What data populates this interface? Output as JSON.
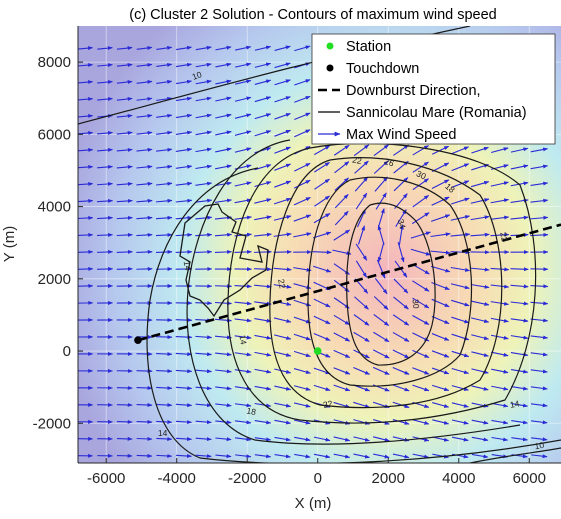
{
  "chart_data": {
    "type": "contour",
    "title": "(c) Cluster 2 Solution - Contours of maximum wind speed",
    "xlabel": "X (m)",
    "ylabel": "Y (m)",
    "xlim": [
      -6800,
      6900
    ],
    "ylim": [
      -3100,
      9000
    ],
    "x_ticks": [
      -6000,
      -4000,
      -2000,
      0,
      2000,
      4000,
      6000
    ],
    "y_ticks": [
      -2000,
      0,
      2000,
      4000,
      6000,
      8000
    ],
    "x_tick_labels": [
      "-6000",
      "-4000",
      "-2000",
      "0",
      "2000",
      "4000",
      "6000"
    ],
    "y_tick_labels": [
      "-2000",
      "0",
      "2000",
      "4000",
      "6000",
      "8000"
    ],
    "grid": true,
    "legend": {
      "placement": "top-right",
      "entries": [
        {
          "label": "Station",
          "marker": "dot",
          "color": "#22dd22"
        },
        {
          "label": "Touchdown",
          "marker": "dot",
          "color": "#000000"
        },
        {
          "label": "Downburst Direction,",
          "marker": "dashed-line",
          "color": "#000000"
        },
        {
          "label": "Sannicolau Mare (Romania)",
          "marker": "line",
          "color": "#000000"
        },
        {
          "label": "Max Wind Speed",
          "marker": "arrow",
          "color": "#2a2ad6"
        }
      ]
    },
    "station": {
      "x": 0,
      "y": 0
    },
    "touchdown": {
      "x": -5100,
      "y": 300
    },
    "downburst_direction": {
      "x": [
        -5100,
        6900
      ],
      "y": [
        300,
        3500
      ]
    },
    "wind_speed_peak": {
      "x": 2500,
      "y": 3000
    },
    "contours": [
      {
        "level": 10,
        "label": "10"
      },
      {
        "level": 14,
        "label": "14"
      },
      {
        "level": 18,
        "label": "18"
      },
      {
        "level": 22,
        "label": "22"
      },
      {
        "level": 26,
        "label": "26"
      },
      {
        "level": 30,
        "label": "30"
      },
      {
        "level": 34,
        "label": "34"
      }
    ]
  },
  "colors": {
    "arrow": "#2a2ad6",
    "station": "#22dd22",
    "touchdown": "#000000",
    "background_low": "#a7a7e0",
    "background_mid": "#bfe8f4",
    "background_high": "#f7c7c7"
  }
}
